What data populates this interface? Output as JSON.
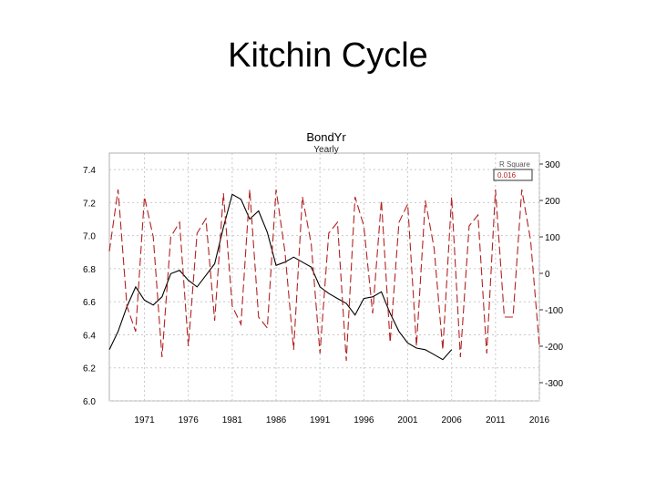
{
  "slide": {
    "title": "Kitchin Cycle"
  },
  "chart_data": {
    "type": "line",
    "title": "BondYr",
    "subtitle": "Yearly",
    "legend": {
      "label": "R Square",
      "value": "0.016",
      "placement": "top-right"
    },
    "grid": true,
    "x_axis": {
      "ticks": [
        "1971",
        "1976",
        "1981",
        "1986",
        "1991",
        "1996",
        "2001",
        "2006",
        "2011",
        "2016"
      ],
      "range": [
        1967,
        2016
      ]
    },
    "y_left": {
      "ticks": [
        6.0,
        6.2,
        6.4,
        6.6,
        6.8,
        7.0,
        7.2,
        7.4
      ],
      "tick_labels": [
        "6.0",
        "6.2",
        "6.4",
        "6.6",
        "6.8",
        "7.0",
        "7.2",
        "7.4"
      ],
      "range": [
        6.0,
        7.5
      ]
    },
    "y_right": {
      "ticks": [
        -300,
        -200,
        -100,
        0,
        100,
        200,
        300
      ],
      "tick_labels": [
        "-300",
        "-200",
        "-100",
        "0",
        "100",
        "200",
        "300"
      ],
      "range": [
        -350,
        330
      ]
    },
    "series": [
      {
        "axis": "left",
        "color": "#000000",
        "style": "solid",
        "x": [
          1967,
          1968,
          1969,
          1970,
          1971,
          1972,
          1973,
          1974,
          1975,
          1976,
          1977,
          1978,
          1979,
          1980,
          1981,
          1982,
          1983,
          1984,
          1985,
          1986,
          1987,
          1988,
          1989,
          1990,
          1991,
          1992,
          1993,
          1994,
          1995,
          1996,
          1997,
          1998,
          1999,
          2000,
          2001,
          2002,
          2003,
          2004,
          2005,
          2006
        ],
        "y": [
          6.31,
          6.42,
          6.57,
          6.69,
          6.61,
          6.58,
          6.63,
          6.77,
          6.79,
          6.73,
          6.69,
          6.76,
          6.83,
          7.05,
          7.25,
          7.22,
          7.1,
          7.15,
          7.02,
          6.82,
          6.84,
          6.87,
          6.84,
          6.81,
          6.69,
          6.65,
          6.62,
          6.59,
          6.52,
          6.62,
          6.63,
          6.66,
          6.53,
          6.42,
          6.35,
          6.32,
          6.31,
          6.28,
          6.25,
          6.31
        ]
      },
      {
        "axis": "right",
        "color": "#b22222",
        "style": "dashed",
        "x": [
          1967,
          1968,
          1969,
          1970,
          1971,
          1972,
          1973,
          1974,
          1975,
          1976,
          1977,
          1978,
          1979,
          1980,
          1981,
          1982,
          1983,
          1984,
          1985,
          1986,
          1987,
          1988,
          1989,
          1990,
          1991,
          1992,
          1993,
          1994,
          1995,
          1996,
          1997,
          1998,
          1999,
          2000,
          2001,
          2002,
          2003,
          2004,
          2005,
          2006,
          2007,
          2008,
          2009,
          2010,
          2011,
          2012,
          2013,
          2014,
          2015,
          2016
        ],
        "y": [
          60,
          230,
          -90,
          -160,
          210,
          100,
          -230,
          100,
          140,
          -200,
          110,
          150,
          -130,
          220,
          -90,
          -140,
          230,
          -120,
          -150,
          230,
          60,
          -210,
          210,
          80,
          -220,
          110,
          140,
          -240,
          210,
          130,
          -110,
          200,
          -190,
          140,
          190,
          -200,
          200,
          70,
          -210,
          210,
          -230,
          130,
          160,
          -220,
          230,
          -120,
          -120,
          230,
          90,
          -200
        ]
      }
    ]
  }
}
